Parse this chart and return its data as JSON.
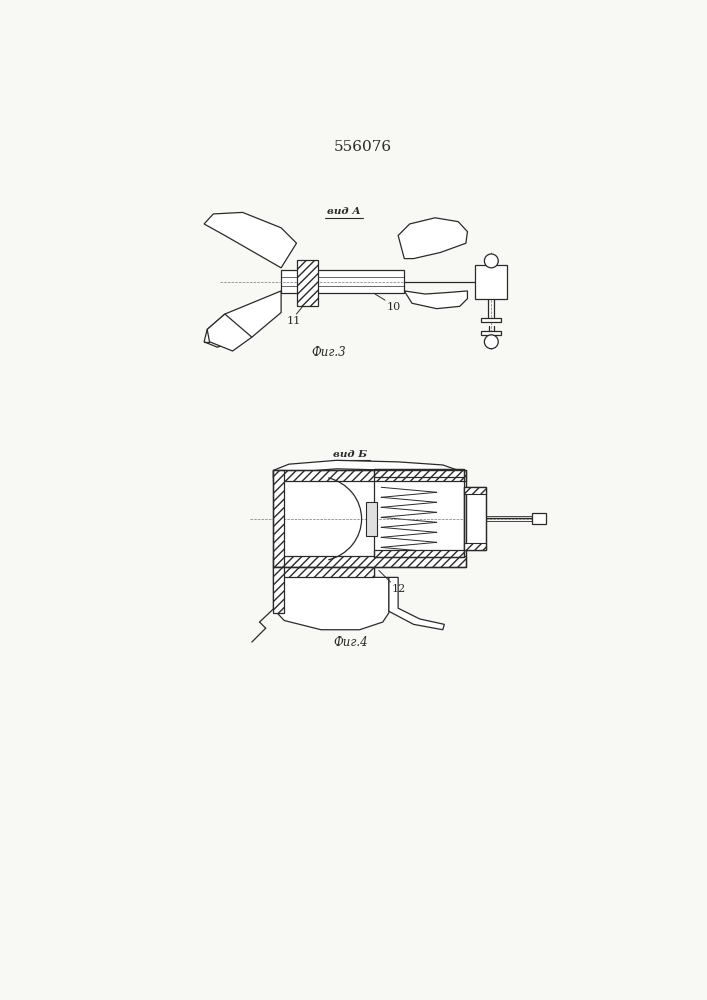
{
  "title": "556076",
  "fig3_label": "Фиг.3",
  "fig4_label": "Фиг.4",
  "vid_a_label": "вид А",
  "vid_b_label": "вид Б",
  "label_10": "10",
  "label_11": "11",
  "label_12": "12",
  "line_color": "#2a2a2a",
  "bg_color": "#f8f8f5"
}
